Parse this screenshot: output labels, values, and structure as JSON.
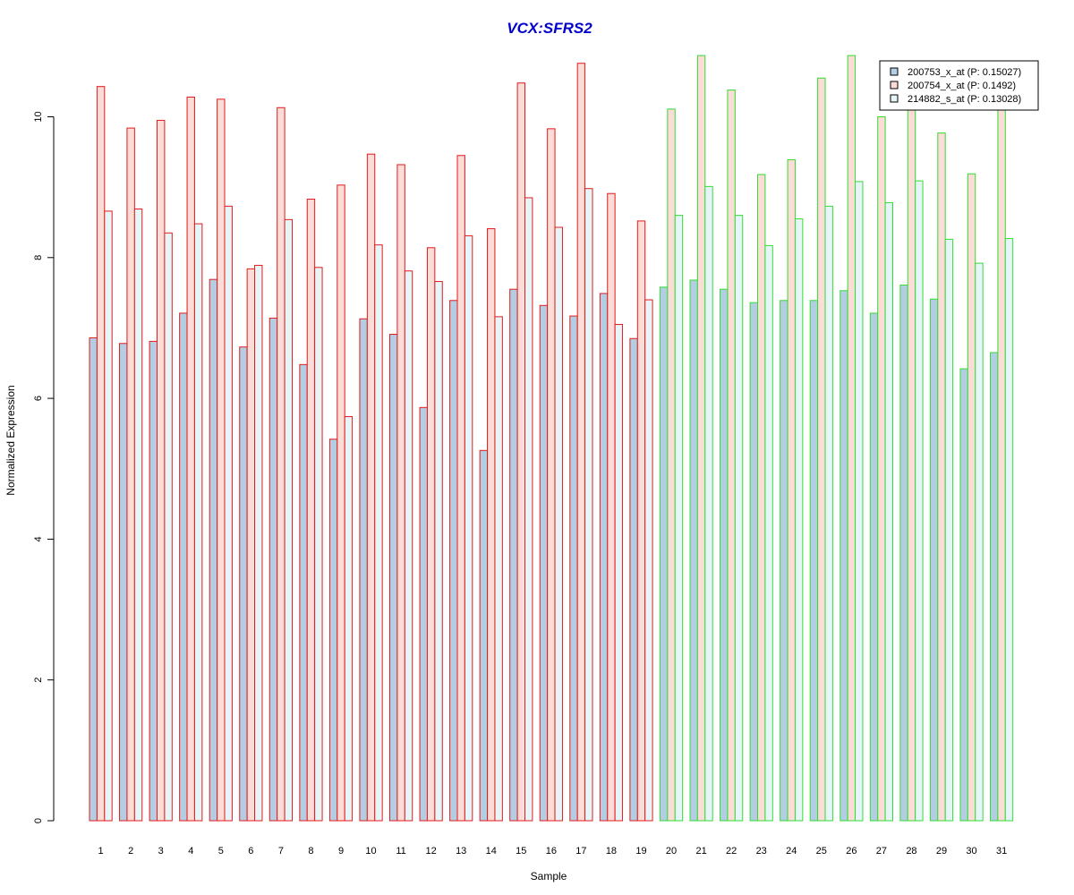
{
  "chart_data": {
    "type": "bar",
    "title": "VCX:SFRS2",
    "xlabel": "Sample",
    "ylabel": "Normalized Expression",
    "ylim": [
      0,
      11
    ],
    "yticks": [
      "0",
      "2",
      "4",
      "6",
      "8",
      "10"
    ],
    "categories": [
      "1",
      "2",
      "3",
      "4",
      "5",
      "6",
      "7",
      "8",
      "9",
      "10",
      "11",
      "12",
      "13",
      "14",
      "15",
      "16",
      "17",
      "18",
      "19",
      "20",
      "21",
      "22",
      "23",
      "24",
      "25",
      "26",
      "27",
      "28",
      "29",
      "30",
      "31"
    ],
    "group_a_count": 19,
    "group_colors": {
      "group_a": "#e41a1c",
      "group_b": "#33dd33"
    },
    "title_color": "#0000cc",
    "grid": false,
    "legend_position": "top-right",
    "series": [
      {
        "name": "200753_x_at (P: 0.15027)",
        "fill": "#b3cde3",
        "values": [
          6.86,
          6.78,
          6.81,
          7.21,
          7.69,
          6.73,
          7.14,
          6.48,
          5.42,
          7.13,
          6.91,
          5.87,
          7.39,
          5.26,
          7.55,
          7.32,
          7.17,
          7.49,
          6.85,
          7.58,
          7.68,
          7.55,
          7.36,
          7.39,
          7.39,
          7.53,
          7.21,
          7.61,
          7.41,
          6.42,
          6.65
        ]
      },
      {
        "name": "200754_x_at (P: 0.1492)",
        "fill": "#fbdcd6",
        "values": [
          10.43,
          9.84,
          9.95,
          10.28,
          10.25,
          7.84,
          10.13,
          8.83,
          9.03,
          9.47,
          9.32,
          8.14,
          9.45,
          8.41,
          10.48,
          9.83,
          10.76,
          8.91,
          8.52,
          10.11,
          10.87,
          10.38,
          9.18,
          9.39,
          10.55,
          10.87,
          10.0,
          10.15,
          9.77,
          9.19,
          10.12
        ]
      },
      {
        "name": "214882_s_at (P: 0.13028)",
        "fill": "#e6f5f8",
        "values": [
          8.66,
          8.69,
          8.35,
          8.48,
          8.73,
          7.89,
          8.54,
          7.86,
          5.74,
          8.18,
          7.81,
          7.66,
          8.31,
          7.16,
          8.85,
          8.43,
          8.98,
          7.05,
          7.4,
          8.6,
          9.01,
          8.6,
          8.17,
          8.55,
          8.73,
          9.08,
          8.78,
          9.09,
          8.26,
          7.92,
          8.27
        ]
      }
    ]
  }
}
